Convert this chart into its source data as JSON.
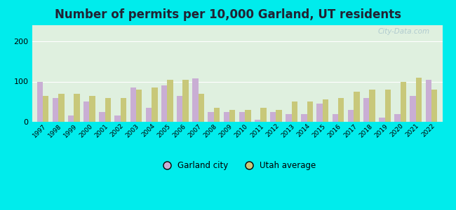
{
  "title": "Number of permits per 10,000 Garland, UT residents",
  "years": [
    1997,
    1998,
    1999,
    2000,
    2001,
    2002,
    2003,
    2004,
    2005,
    2006,
    2007,
    2008,
    2009,
    2010,
    2011,
    2012,
    2013,
    2014,
    2015,
    2016,
    2017,
    2018,
    2019,
    2020,
    2021,
    2022
  ],
  "garland": [
    100,
    60,
    15,
    50,
    25,
    15,
    85,
    35,
    90,
    65,
    107,
    25,
    25,
    25,
    5,
    25,
    20,
    20,
    45,
    20,
    30,
    60,
    10,
    20,
    65,
    105
  ],
  "utah_avg": [
    65,
    70,
    70,
    65,
    60,
    60,
    80,
    85,
    105,
    105,
    70,
    35,
    30,
    30,
    35,
    30,
    50,
    50,
    55,
    60,
    75,
    80,
    80,
    100,
    110,
    80
  ],
  "garland_color": "#c9aed4",
  "utah_color": "#c8c87a",
  "background_outer": "#00ecec",
  "background_plot": "#dff0df",
  "ylim": [
    0,
    240
  ],
  "yticks": [
    0,
    100,
    200
  ],
  "title_fontsize": 12,
  "title_color": "#222233",
  "legend_labels": [
    "Garland city",
    "Utah average"
  ],
  "watermark": "City-Data.com"
}
